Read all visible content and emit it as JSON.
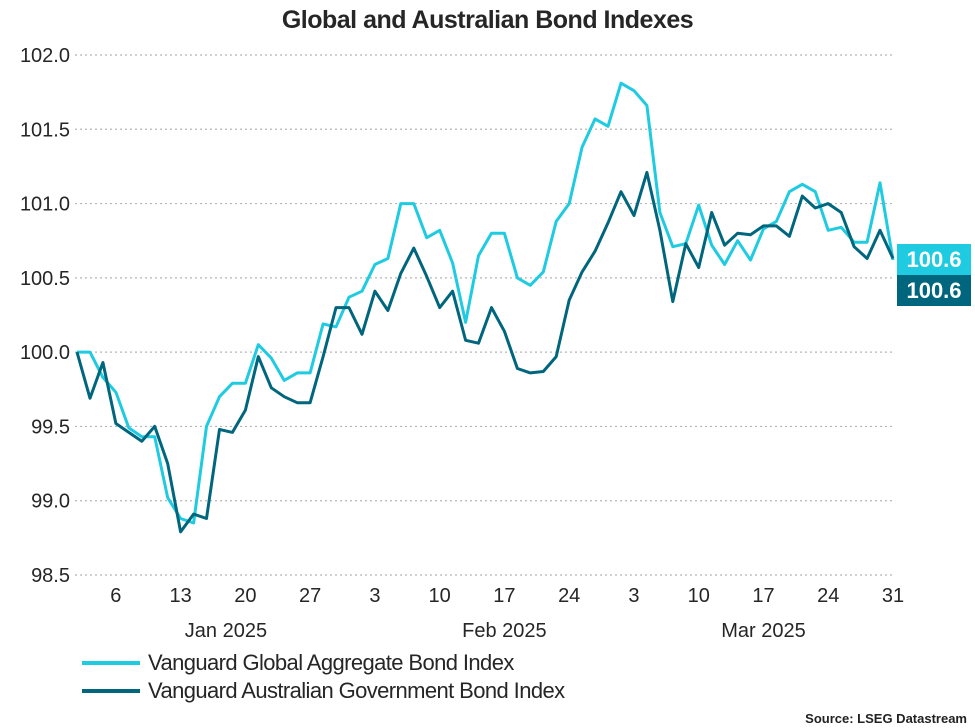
{
  "chart_data": {
    "type": "line",
    "title": "Global and Australian Bond Indexes",
    "xlabel": "",
    "ylabel": "",
    "ylim": [
      98.5,
      102.0
    ],
    "yticks": [
      "98.5",
      "99.0",
      "99.5",
      "100.0",
      "100.5",
      "101.0",
      "101.5",
      "102.0"
    ],
    "grid": "horizontal dotted",
    "x": [
      "2025-01-01",
      "2025-01-02",
      "2025-01-03",
      "2025-01-06",
      "2025-01-07",
      "2025-01-08",
      "2025-01-09",
      "2025-01-10",
      "2025-01-13",
      "2025-01-14",
      "2025-01-15",
      "2025-01-16",
      "2025-01-17",
      "2025-01-20",
      "2025-01-21",
      "2025-01-22",
      "2025-01-23",
      "2025-01-24",
      "2025-01-27",
      "2025-01-28",
      "2025-01-29",
      "2025-01-30",
      "2025-01-31",
      "2025-02-03",
      "2025-02-04",
      "2025-02-05",
      "2025-02-06",
      "2025-02-07",
      "2025-02-10",
      "2025-02-11",
      "2025-02-12",
      "2025-02-13",
      "2025-02-14",
      "2025-02-17",
      "2025-02-18",
      "2025-02-19",
      "2025-02-20",
      "2025-02-21",
      "2025-02-24",
      "2025-02-25",
      "2025-02-26",
      "2025-02-27",
      "2025-02-28",
      "2025-03-03",
      "2025-03-04",
      "2025-03-05",
      "2025-03-06",
      "2025-03-07",
      "2025-03-10",
      "2025-03-11",
      "2025-03-12",
      "2025-03-13",
      "2025-03-14",
      "2025-03-17",
      "2025-03-18",
      "2025-03-19",
      "2025-03-20",
      "2025-03-21",
      "2025-03-24",
      "2025-03-25",
      "2025-03-26",
      "2025-03-27",
      "2025-03-28",
      "2025-03-31"
    ],
    "xticks": [
      {
        "index": 3,
        "label": "6"
      },
      {
        "index": 8,
        "label": "13"
      },
      {
        "index": 13,
        "label": "20"
      },
      {
        "index": 18,
        "label": "27"
      },
      {
        "index": 23,
        "label": "3"
      },
      {
        "index": 28,
        "label": "10"
      },
      {
        "index": 33,
        "label": "17"
      },
      {
        "index": 38,
        "label": "24"
      },
      {
        "index": 43,
        "label": "3"
      },
      {
        "index": 48,
        "label": "10"
      },
      {
        "index": 53,
        "label": "17"
      },
      {
        "index": 58,
        "label": "24"
      },
      {
        "index": 63,
        "label": "31"
      }
    ],
    "month_labels": [
      {
        "index": 11.5,
        "label": "Jan 2025"
      },
      {
        "index": 33,
        "label": "Feb 2025"
      },
      {
        "index": 53,
        "label": "Mar 2025"
      }
    ],
    "series": [
      {
        "name": "Vanguard Global Aggregate Bond Index",
        "color": "#1ecbe1",
        "last_label": "100.6",
        "values": [
          100.0,
          100.0,
          99.83,
          99.73,
          99.49,
          99.43,
          99.43,
          99.02,
          98.88,
          98.85,
          99.5,
          99.7,
          99.79,
          99.79,
          100.05,
          99.96,
          99.81,
          99.86,
          99.86,
          100.19,
          100.17,
          100.37,
          100.41,
          100.59,
          100.63,
          101.0,
          101.0,
          100.77,
          100.82,
          100.6,
          100.2,
          100.65,
          100.8,
          100.8,
          100.5,
          100.45,
          100.54,
          100.88,
          101.0,
          101.38,
          101.57,
          101.52,
          101.81,
          101.76,
          101.66,
          100.94,
          100.71,
          100.73,
          100.99,
          100.72,
          100.59,
          100.75,
          100.62,
          100.83,
          100.88,
          101.08,
          101.13,
          101.08,
          100.82,
          100.84,
          100.74,
          100.74,
          101.14,
          100.62
        ]
      },
      {
        "name": "Vanguard Australian Government Bond Index",
        "color": "#00667d",
        "last_label": "100.6",
        "values": [
          100.0,
          99.69,
          99.93,
          99.52,
          99.46,
          99.4,
          99.5,
          99.25,
          98.79,
          98.91,
          98.88,
          99.48,
          99.46,
          99.61,
          99.97,
          99.76,
          99.7,
          99.66,
          99.66,
          99.97,
          100.3,
          100.3,
          100.12,
          100.41,
          100.28,
          100.53,
          100.7,
          100.51,
          100.3,
          100.41,
          100.08,
          100.06,
          100.3,
          100.14,
          99.89,
          99.86,
          99.87,
          99.97,
          100.35,
          100.54,
          100.68,
          100.87,
          101.08,
          100.92,
          101.21,
          100.82,
          100.34,
          100.73,
          100.57,
          100.94,
          100.72,
          100.8,
          100.79,
          100.85,
          100.85,
          100.78,
          101.05,
          100.97,
          101.0,
          100.94,
          100.71,
          100.63,
          100.82,
          100.63
        ]
      }
    ],
    "legend": "bottom-left",
    "source": "Source: LSEG Datastream"
  }
}
